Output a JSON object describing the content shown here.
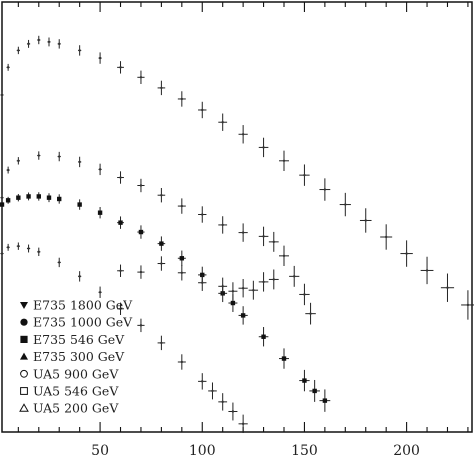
{
  "chart_data": {
    "type": "scatter",
    "title": "",
    "xlabel": "",
    "ylabel": "",
    "xlim": [
      2,
      232
    ],
    "y_scale": "log",
    "x_ticks": [
      50,
      100,
      150,
      200
    ],
    "grid": false,
    "legend_position": "bottom-left",
    "legend": [
      {
        "label": "E735 1800 GeV",
        "marker": "triangle-down"
      },
      {
        "label": "E735 1000 GeV",
        "marker": "circle-filled"
      },
      {
        "label": "E735 546 GeV",
        "marker": "square-filled"
      },
      {
        "label": "E735 300 GeV",
        "marker": "triangle-up-filled"
      },
      {
        "label": "UA5 900 GeV",
        "marker": "circle-open"
      },
      {
        "label": "UA5 546 GeV",
        "marker": "square-open"
      },
      {
        "label": "UA5 200 GeV",
        "marker": "triangle-up-open"
      }
    ],
    "series": [
      {
        "marker": "cross",
        "x": [
          2,
          5,
          10,
          15,
          20,
          25,
          30,
          40,
          50,
          60,
          70,
          80,
          90,
          100,
          110,
          120,
          130,
          140,
          150,
          160,
          170,
          180,
          190,
          200,
          210,
          220,
          230
        ],
        "y": [
          0.0035,
          0.0065,
          0.0095,
          0.011,
          0.012,
          0.0115,
          0.011,
          0.0095,
          0.008,
          0.0065,
          0.0052,
          0.0041,
          0.0032,
          0.0025,
          0.0019,
          0.00145,
          0.00108,
          0.0008,
          0.00058,
          0.00042,
          0.0003,
          0.00021,
          0.000145,
          0.0001,
          6.85e-05,
          4.65e-05,
          3.16e-05
        ]
      },
      {
        "marker": "cross",
        "x": [
          2,
          5,
          10,
          20,
          30,
          40,
          50,
          60,
          70,
          80,
          90,
          100,
          110,
          120,
          130,
          135,
          140,
          145,
          150,
          153
        ],
        "y": [
          0.00035,
          0.00065,
          0.0008,
          0.0009,
          0.00088,
          0.00078,
          0.00066,
          0.00055,
          0.00046,
          0.00037,
          0.00029,
          0.00024,
          0.00019,
          0.00016,
          0.000147,
          0.00013,
          9.5e-05,
          6e-05,
          4e-05,
          2.6e-05
        ]
      },
      {
        "marker": "square-filled",
        "x": [
          2,
          5,
          10,
          15,
          20,
          25,
          30,
          40,
          50,
          60,
          70,
          80,
          90,
          100,
          110,
          115,
          120,
          130,
          140,
          150,
          155,
          160
        ],
        "y": [
          0.0003,
          0.00033,
          0.00035,
          0.00036,
          0.00036,
          0.00035,
          0.00034,
          0.0003,
          0.00025,
          0.0002,
          0.000162,
          0.000125,
          9e-05,
          6.2e-05,
          4.1e-05,
          3.3e-05,
          2.5e-05,
          1.55e-05,
          9.5e-06,
          5.8e-06,
          4.6e-06,
          3.7e-06
        ]
      },
      {
        "marker": "cross",
        "x": [
          2,
          5,
          10,
          15,
          20,
          30,
          40,
          50,
          60,
          70,
          80,
          90,
          100,
          105,
          110,
          115,
          120
        ],
        "y": [
          0.0001,
          0.000115,
          0.000118,
          0.000112,
          0.000104,
          8.2e-05,
          6e-05,
          4.2e-05,
          2.9e-05,
          2e-05,
          1.35e-05,
          8.8e-06,
          5.7e-06,
          4.6e-06,
          3.6e-06,
          2.9e-06,
          2.2e-06
        ]
      },
      {
        "marker": "cross",
        "x": [
          60,
          70,
          80,
          90,
          100,
          110,
          115,
          120,
          125,
          130,
          135
        ],
        "y": [
          6.8e-05,
          6.6e-05,
          8e-05,
          6.5e-05,
          5.2e-05,
          4.8e-05,
          4.3e-05,
          4.6e-05,
          4.4e-05,
          5.3e-05,
          5.6e-05
        ]
      }
    ]
  }
}
